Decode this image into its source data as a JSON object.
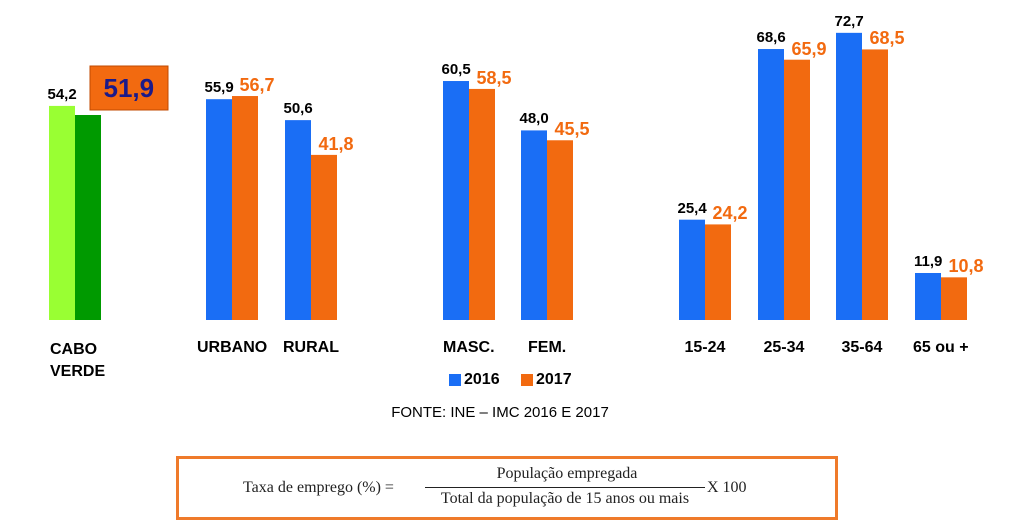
{
  "chart_data": {
    "type": "bar",
    "categories": [
      "CABO VERDE",
      "URBANO",
      "RURAL",
      "MASC.",
      "FEM.",
      "15-24",
      "25-34",
      "35-64",
      "65 ou +"
    ],
    "series": [
      {
        "name": "2016",
        "color": "#1a6ef5",
        "first_category_color": "#99ff33",
        "values": [
          54.2,
          55.9,
          50.6,
          60.5,
          48.0,
          25.4,
          68.6,
          72.7,
          11.9
        ],
        "value_labels": [
          "54,2",
          "55,9",
          "50,6",
          "60,5",
          "48,0",
          "25,4",
          "68,6",
          "72,7",
          "11,9"
        ]
      },
      {
        "name": "2017",
        "color": "#f26a10",
        "first_category_color": "#009a00",
        "values": [
          51.9,
          56.7,
          41.8,
          58.5,
          45.5,
          24.2,
          65.9,
          68.5,
          10.8
        ],
        "value_labels": [
          "51,9",
          "56,7",
          "41,8",
          "58,5",
          "45,5",
          "24,2",
          "65,9",
          "68,5",
          "10,8"
        ]
      }
    ],
    "source": "FONTE: INE – IMC 2016 E 2017",
    "formula": {
      "lhs": "Taxa de emprego (%) =",
      "numerator": "População empregada",
      "denominator": "Total da população de 15 anos ou mais",
      "rhs": "X 100"
    }
  }
}
